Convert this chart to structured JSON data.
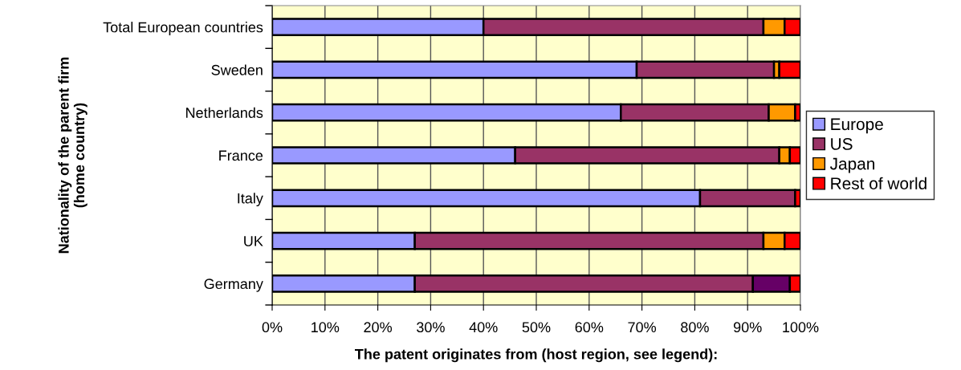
{
  "chart_data": {
    "type": "bar",
    "orientation": "horizontal",
    "stacked": true,
    "xlabel": "The patent originates from (host region, see legend):",
    "ylabel": "Nationality of the parent firm\n(home country)",
    "categories": [
      "Total European countries",
      "Sweden",
      "Netherlands",
      "France",
      "Italy",
      "UK",
      "Germany"
    ],
    "series": [
      {
        "name": "Europe",
        "color": "#9999ff",
        "values": [
          40,
          69,
          66,
          46,
          81,
          27,
          27
        ]
      },
      {
        "name": "US",
        "color": "#993366",
        "values": [
          53,
          26,
          28,
          50,
          18,
          66,
          64
        ]
      },
      {
        "name": "Japan",
        "color": "#ff9900",
        "colors": [
          "#ff9900",
          "#ff9900",
          "#ff9900",
          "#ff9900",
          "#ff9900",
          "#ff9900",
          "#660066"
        ],
        "values": [
          4,
          1,
          5,
          2,
          0,
          4,
          7
        ]
      },
      {
        "name": "Rest of world",
        "color": "#ff0000",
        "values": [
          3,
          4,
          1,
          2,
          1,
          3,
          2
        ]
      }
    ],
    "xlim": [
      0,
      100
    ],
    "xticks": [
      {
        "value": 0,
        "label": "0%"
      },
      {
        "value": 10,
        "label": "10%"
      },
      {
        "value": 20,
        "label": "20%"
      },
      {
        "value": 30,
        "label": "30%"
      },
      {
        "value": 40,
        "label": "40%"
      },
      {
        "value": 50,
        "label": "50%"
      },
      {
        "value": 60,
        "label": "60%"
      },
      {
        "value": 70,
        "label": "70%"
      },
      {
        "value": 80,
        "label": "80%"
      },
      {
        "value": 90,
        "label": "90%"
      },
      {
        "value": 100,
        "label": "100%"
      }
    ],
    "grid": "x",
    "legend": "right"
  }
}
